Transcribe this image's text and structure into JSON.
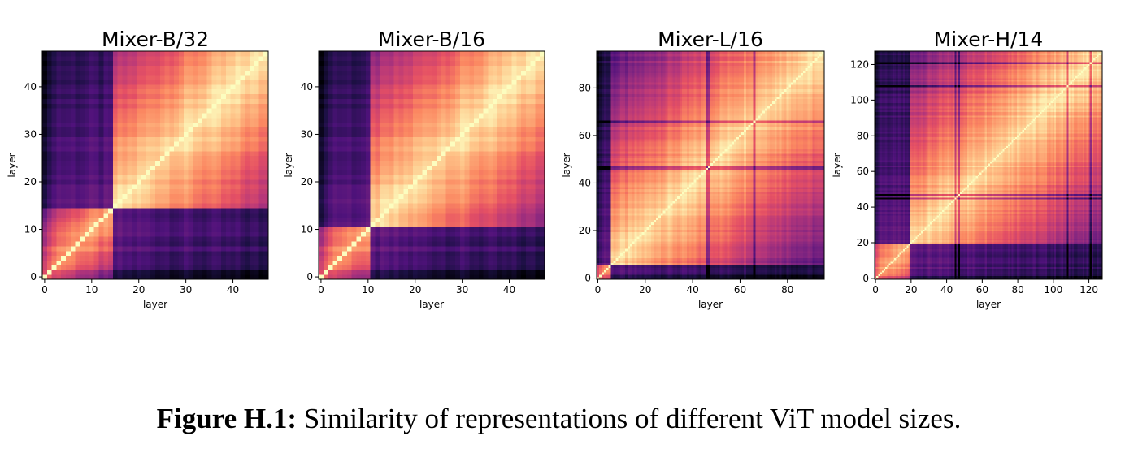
{
  "chart_data": [
    {
      "type": "heatmap",
      "title": "Mixer-B/32",
      "xlabel": "layer",
      "ylabel": "layer",
      "n_layers": 48,
      "xlim": [
        0,
        47
      ],
      "ylim": [
        0,
        47
      ],
      "xticks": [
        0,
        10,
        20,
        30,
        40
      ],
      "yticks": [
        0,
        10,
        20,
        30,
        40
      ],
      "colormap": "magma",
      "value_range": [
        0,
        1
      ],
      "description_of_values": "layer-by-layer representation similarity; diagonal = 1",
      "early_block_boundary": 15,
      "dark_layers": [],
      "grid": false
    },
    {
      "type": "heatmap",
      "title": "Mixer-B/16",
      "xlabel": "layer",
      "ylabel": "layer",
      "n_layers": 48,
      "xlim": [
        0,
        47
      ],
      "ylim": [
        0,
        47
      ],
      "xticks": [
        0,
        10,
        20,
        30,
        40
      ],
      "yticks": [
        0,
        10,
        20,
        30,
        40
      ],
      "colormap": "magma",
      "value_range": [
        0,
        1
      ],
      "early_block_boundary": 11,
      "dark_layers": [],
      "grid": false
    },
    {
      "type": "heatmap",
      "title": "Mixer-L/16",
      "xlabel": "layer",
      "ylabel": "layer",
      "n_layers": 96,
      "xlim": [
        0,
        95
      ],
      "ylim": [
        0,
        95
      ],
      "xticks": [
        0,
        20,
        40,
        60,
        80
      ],
      "yticks": [
        0,
        20,
        40,
        60,
        80
      ],
      "colormap": "magma",
      "value_range": [
        0,
        1
      ],
      "early_block_boundary": 6,
      "dark_layers": [
        46,
        47,
        66
      ],
      "grid": false
    },
    {
      "type": "heatmap",
      "title": "Mixer-H/14",
      "xlabel": "layer",
      "ylabel": "layer",
      "n_layers": 128,
      "xlim": [
        0,
        127
      ],
      "ylim": [
        0,
        127
      ],
      "xticks": [
        0,
        20,
        40,
        60,
        80,
        100,
        120
      ],
      "yticks": [
        0,
        20,
        40,
        60,
        80,
        100,
        120
      ],
      "colormap": "magma",
      "value_range": [
        0,
        1
      ],
      "early_block_boundary": 20,
      "dark_layers": [
        45,
        47,
        108,
        121
      ],
      "grid": false
    }
  ],
  "caption": {
    "label": "Figure H.1:",
    "text": " Similarity of representations of different ViT model sizes."
  }
}
